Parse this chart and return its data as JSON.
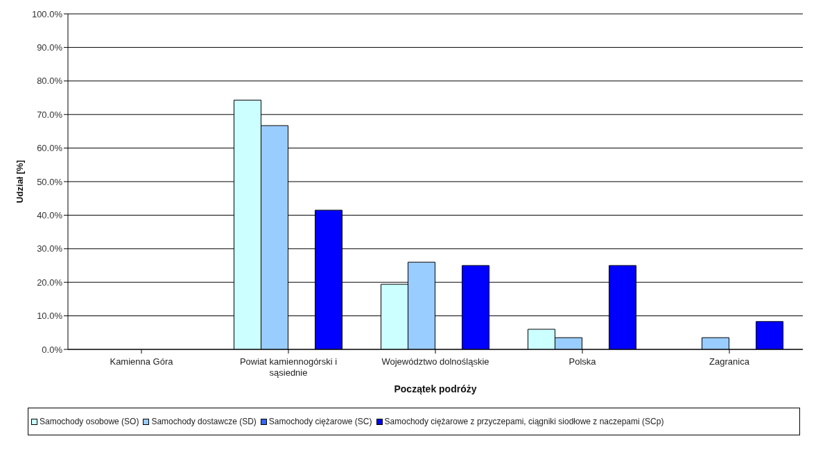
{
  "chart_data": {
    "type": "bar",
    "xlabel": "Początek podróży",
    "ylabel": "Udział [%]",
    "categories": [
      "Kamienna Góra",
      "Powiat kamiennogórski i sąsiednie",
      "Województwo dolnośląskie",
      "Polska",
      "Zagranica"
    ],
    "series": [
      {
        "name": "Samochody osobowe (SO)",
        "color": "#ccffff",
        "values": [
          0,
          74.3,
          19.4,
          6.0,
          0
        ]
      },
      {
        "name": "Samochody dostawcze (SD)",
        "color": "#99ccff",
        "values": [
          0,
          66.7,
          26.0,
          3.5,
          3.5
        ]
      },
      {
        "name": "Samochody ciężarowe (SC)",
        "color": "#3366ff",
        "values": [
          0,
          0,
          0,
          0,
          0
        ]
      },
      {
        "name": "Samochody ciężarowe z przyczepami, ciągniki siodłowe z naczepami (SCp)",
        "color": "#0000ff",
        "values": [
          0,
          41.5,
          25.0,
          25.0,
          8.3
        ]
      }
    ],
    "ylim": [
      0,
      100
    ],
    "yticks": [
      {
        "value": 0,
        "label": "0.0%"
      },
      {
        "value": 10,
        "label": "10.0%"
      },
      {
        "value": 20,
        "label": "20.0%"
      },
      {
        "value": 30,
        "label": "30.0%"
      },
      {
        "value": 40,
        "label": "40.0%"
      },
      {
        "value": 50,
        "label": "50.0%"
      },
      {
        "value": 60,
        "label": "60.0%"
      },
      {
        "value": 70,
        "label": "70.0%"
      },
      {
        "value": 80,
        "label": "80.0%"
      },
      {
        "value": 90,
        "label": "90.0%"
      },
      {
        "value": 100,
        "label": "100.0%"
      }
    ],
    "grid": "y",
    "legend": "bottom"
  }
}
